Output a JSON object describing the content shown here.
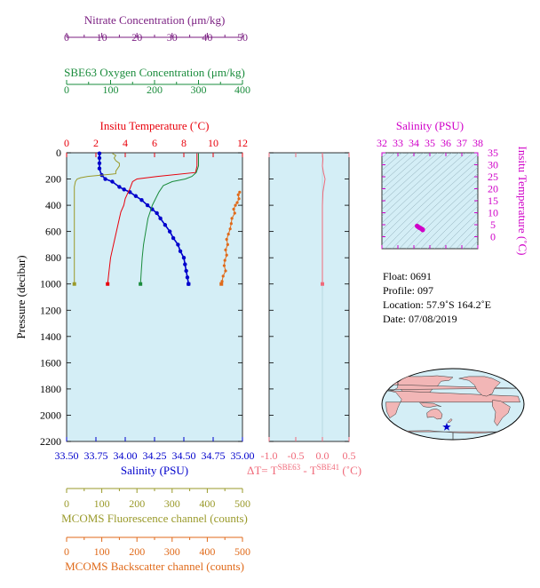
{
  "float_info": {
    "float_line": "Float:  0691",
    "profile_line": "Profile:  097",
    "location_line": "Location:  57.9˚S  164.2˚E",
    "date_line": "Date:  07/08/2019"
  },
  "colors": {
    "plot_bg": "#d4eef6",
    "salinity": "#0000cc",
    "temperature": "#e8000b",
    "oxygen": "#1a8c3c",
    "nitrate": "#7b1f82",
    "fluorescence": "#9a9a2a",
    "backscatter": "#e06a1a",
    "delta_t": "#f06a7a",
    "ts_panel": "#d000c8",
    "map_land": "#f2b6b6",
    "map_ocean": "#d4eef6"
  },
  "chart_data": [
    {
      "type": "line",
      "name": "main-profile",
      "ylabel": "Pressure (decibar)",
      "ylim": [
        0,
        2200
      ],
      "y_ticks": [
        "0",
        "200",
        "400",
        "600",
        "800",
        "1000",
        "1200",
        "1400",
        "1600",
        "1800",
        "2000",
        "2200"
      ],
      "axes": {
        "salinity": {
          "label": "Salinity (PSU)",
          "lim": [
            33.5,
            35.0
          ],
          "ticks": [
            "33.50",
            "33.75",
            "34.00",
            "34.25",
            "34.50",
            "34.75",
            "35.00"
          ]
        },
        "temperature": {
          "label": "Insitu Temperature (˚C)",
          "lim": [
            0,
            12
          ],
          "ticks": [
            "0",
            "2",
            "4",
            "6",
            "8",
            "10",
            "12"
          ]
        },
        "oxygen": {
          "label": "SBE63 Oxygen Concentration (μm/kg)",
          "lim": [
            0,
            400
          ],
          "ticks": [
            "0",
            "100",
            "200",
            "300",
            "400"
          ]
        },
        "nitrate": {
          "label": "Nitrate Concentration (μm/kg)",
          "lim": [
            0,
            50
          ],
          "ticks": [
            "0",
            "10",
            "20",
            "30",
            "40",
            "50"
          ]
        },
        "fluorescence": {
          "label": "MCOMS Fluorescence channel (counts)",
          "lim": [
            0,
            500
          ],
          "ticks": [
            "0",
            "100",
            "200",
            "300",
            "400",
            "500"
          ]
        },
        "backscatter": {
          "label": "MCOMS Backscatter channel (counts)",
          "lim": [
            0,
            500
          ],
          "ticks": [
            "0",
            "100",
            "200",
            "300",
            "400",
            "500"
          ]
        }
      },
      "series": [
        {
          "key": "salinity",
          "p": [
            5,
            20,
            40,
            60,
            80,
            100,
            120,
            150,
            170,
            180,
            200,
            210,
            220,
            240,
            260,
            280,
            300,
            330,
            360,
            400,
            430,
            460,
            500,
            550,
            600,
            650,
            700,
            750,
            800,
            850,
            900,
            950,
            1000
          ],
          "x": [
            33.78,
            33.78,
            33.78,
            33.78,
            33.78,
            33.78,
            33.78,
            33.79,
            33.8,
            33.81,
            33.83,
            33.86,
            33.89,
            33.92,
            33.95,
            33.99,
            34.04,
            34.09,
            34.14,
            34.19,
            34.23,
            34.27,
            34.3,
            34.34,
            34.38,
            34.41,
            34.45,
            34.47,
            34.5,
            34.51,
            34.52,
            34.53,
            34.54
          ]
        },
        {
          "key": "temperature",
          "p": [
            5,
            50,
            100,
            150,
            180,
            200,
            220,
            250,
            280,
            300,
            350,
            400,
            450,
            500,
            600,
            700,
            800,
            900,
            1000
          ],
          "x": [
            8.9,
            8.9,
            8.9,
            8.8,
            6.2,
            4.8,
            4.5,
            4.4,
            4.3,
            4.2,
            4.0,
            3.9,
            3.7,
            3.6,
            3.4,
            3.2,
            3.0,
            2.9,
            2.8
          ]
        },
        {
          "key": "oxygen",
          "p": [
            5,
            50,
            100,
            150,
            180,
            200,
            220,
            250,
            300,
            400,
            500,
            600,
            700,
            800,
            900,
            1000
          ],
          "x": [
            300,
            300,
            300,
            295,
            285,
            270,
            240,
            220,
            210,
            195,
            185,
            180,
            175,
            172,
            170,
            168
          ]
        },
        {
          "key": "fluorescence",
          "p": [
            5,
            20,
            40,
            60,
            80,
            100,
            120,
            140,
            160,
            180,
            190,
            200,
            220,
            260,
            300,
            400,
            600,
            800,
            1000
          ],
          "x": [
            130,
            140,
            135,
            140,
            150,
            150,
            145,
            140,
            140,
            60,
            40,
            30,
            25,
            22,
            22,
            22,
            22,
            22,
            22
          ]
        },
        {
          "key": "backscatter",
          "p": [
            300,
            320,
            350,
            380,
            400,
            430,
            460,
            500,
            540,
            580,
            620,
            660,
            700,
            740,
            780,
            820,
            860,
            900,
            940,
            980,
            1000
          ],
          "x": [
            492,
            488,
            490,
            485,
            480,
            475,
            478,
            470,
            468,
            465,
            460,
            455,
            458,
            452,
            455,
            450,
            448,
            452,
            445,
            442,
            440
          ]
        },
        {
          "key": "delta_t",
          "p": [
            5,
            50,
            100,
            150,
            200,
            250,
            300,
            400,
            500,
            600,
            700,
            800,
            900,
            1000
          ],
          "x": [
            0.0,
            0.01,
            0.0,
            0.02,
            0.05,
            0.03,
            0.01,
            0.0,
            0.0,
            0.0,
            0.0,
            0.0,
            0.0,
            0.0
          ]
        }
      ]
    },
    {
      "type": "line",
      "name": "delta-t-panel",
      "xlabel_prefix": "ΔT= T",
      "xlabel_sup1": "SBE63",
      "xlabel_mid": " - T",
      "xlabel_sup2": "SBE41",
      "xlabel_suffix": " (˚C)",
      "xlim": [
        -1.0,
        0.5
      ],
      "x_ticks": [
        "-1.0",
        "-0.5",
        "0.0",
        "0.5"
      ]
    },
    {
      "type": "scatter",
      "name": "ts-diagram",
      "xlabel": "Salinity (PSU)",
      "ylabel": "Insitu Temperature (˚C)",
      "xlim": [
        32,
        38
      ],
      "ylim": [
        -5,
        35
      ],
      "x_ticks": [
        "32",
        "33",
        "34",
        "35",
        "36",
        "37",
        "38"
      ],
      "y_ticks": [
        "0",
        "5",
        "10",
        "15",
        "20",
        "25",
        "30",
        "35"
      ],
      "points_salinity": [
        34.2,
        34.25,
        34.3,
        34.35,
        34.4,
        34.45,
        34.5,
        34.55,
        34.55
      ],
      "points_temperature": [
        4.5,
        4.2,
        4.0,
        3.8,
        3.6,
        3.4,
        3.2,
        3.0,
        2.8
      ]
    },
    {
      "type": "map",
      "name": "float-location-map",
      "lat": -57.9,
      "lon": 164.2
    }
  ]
}
